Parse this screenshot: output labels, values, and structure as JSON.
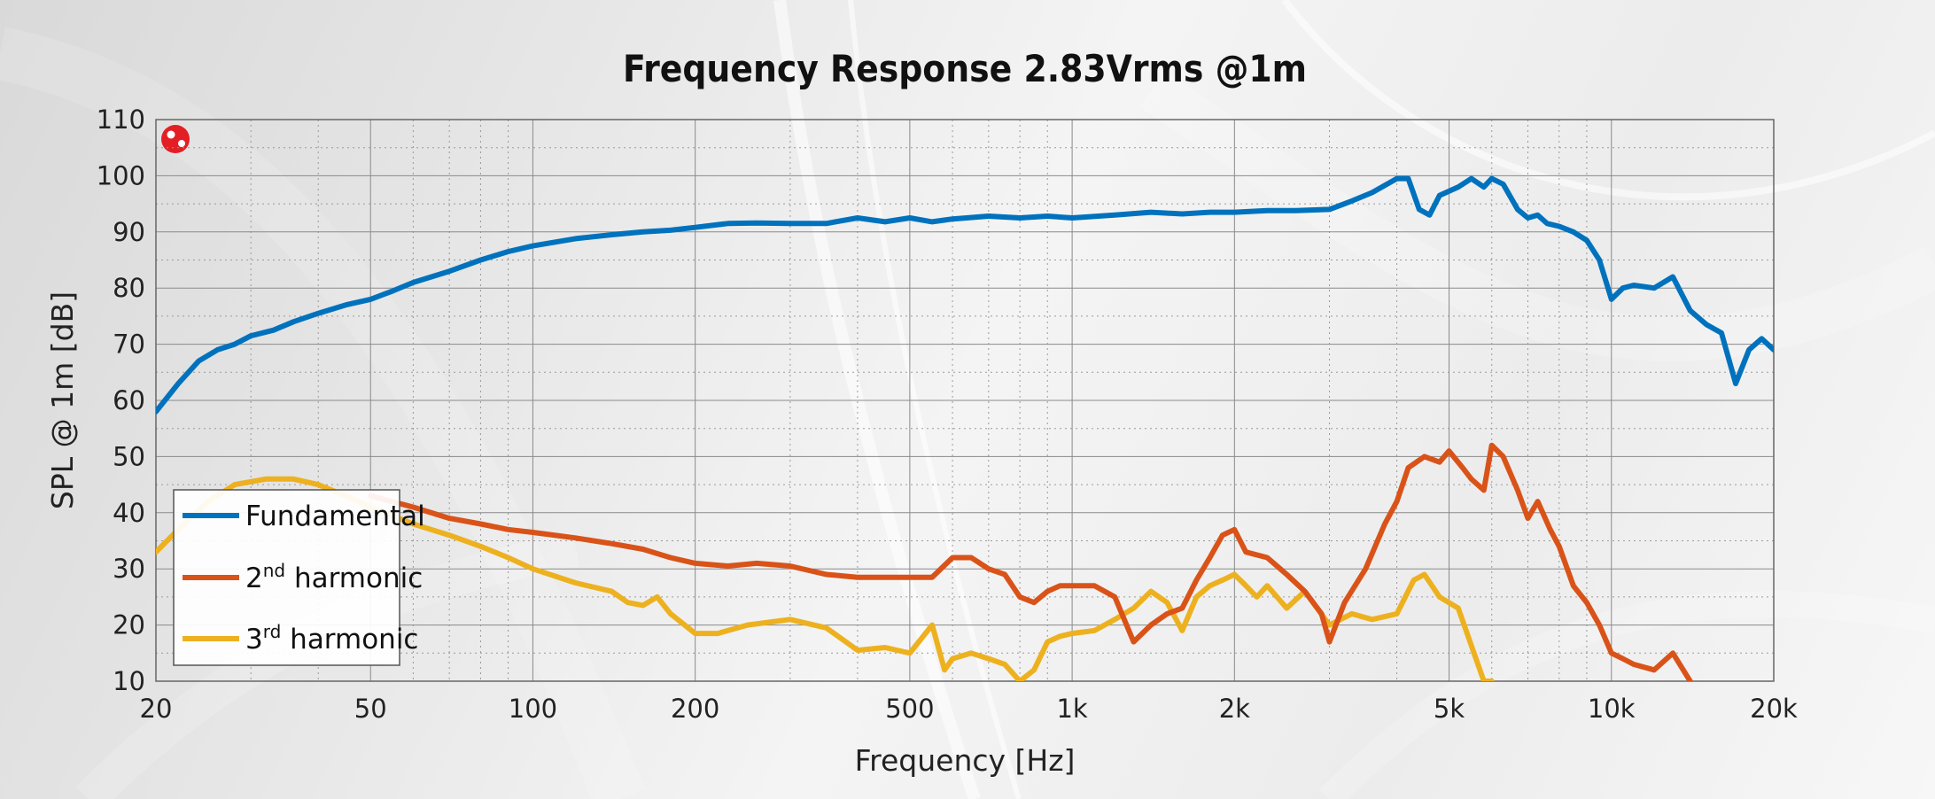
{
  "chart_data": {
    "type": "line",
    "title": "Frequency Response 2.83Vrms @1m",
    "xlabel": "Frequency [Hz]",
    "ylabel": "SPL @ 1m [dB]",
    "x_scale": "log",
    "xlim": [
      20,
      20000
    ],
    "ylim": [
      10,
      110
    ],
    "x_ticks": [
      20,
      50,
      100,
      200,
      500,
      1000,
      2000,
      5000,
      10000,
      20000
    ],
    "x_tick_labels": [
      "20",
      "50",
      "100",
      "200",
      "500",
      "1k",
      "2k",
      "5k",
      "10k",
      "20k"
    ],
    "y_ticks": [
      10,
      20,
      30,
      40,
      50,
      60,
      70,
      80,
      90,
      100,
      110
    ],
    "y_tick_labels": [
      "10",
      "20",
      "30",
      "40",
      "50",
      "60",
      "70",
      "80",
      "90",
      "100",
      "110"
    ],
    "grid": true,
    "legend_position": "bottom-left",
    "series": [
      {
        "name": "Fundamental",
        "legend_base": "Fundamental",
        "legend_sup": "",
        "legend_suffix": "",
        "color": "#0072bd",
        "points": [
          [
            20,
            58
          ],
          [
            22,
            63
          ],
          [
            24,
            67
          ],
          [
            26,
            69
          ],
          [
            28,
            70
          ],
          [
            30,
            71.5
          ],
          [
            33,
            72.5
          ],
          [
            36,
            74
          ],
          [
            40,
            75.5
          ],
          [
            45,
            77
          ],
          [
            50,
            78
          ],
          [
            55,
            79.5
          ],
          [
            60,
            81
          ],
          [
            70,
            83
          ],
          [
            80,
            85
          ],
          [
            90,
            86.5
          ],
          [
            100,
            87.5
          ],
          [
            120,
            88.8
          ],
          [
            140,
            89.5
          ],
          [
            160,
            90
          ],
          [
            180,
            90.3
          ],
          [
            200,
            90.8
          ],
          [
            230,
            91.5
          ],
          [
            260,
            91.6
          ],
          [
            300,
            91.5
          ],
          [
            350,
            91.5
          ],
          [
            400,
            92.5
          ],
          [
            450,
            91.8
          ],
          [
            500,
            92.5
          ],
          [
            550,
            91.8
          ],
          [
            600,
            92.3
          ],
          [
            700,
            92.8
          ],
          [
            800,
            92.5
          ],
          [
            900,
            92.8
          ],
          [
            1000,
            92.5
          ],
          [
            1200,
            93
          ],
          [
            1400,
            93.5
          ],
          [
            1600,
            93.2
          ],
          [
            1800,
            93.5
          ],
          [
            2000,
            93.5
          ],
          [
            2300,
            93.8
          ],
          [
            2600,
            93.8
          ],
          [
            3000,
            94
          ],
          [
            3300,
            95.5
          ],
          [
            3600,
            97
          ],
          [
            4000,
            99.5
          ],
          [
            4200,
            99.5
          ],
          [
            4400,
            94
          ],
          [
            4600,
            93
          ],
          [
            4800,
            96.5
          ],
          [
            5200,
            98
          ],
          [
            5500,
            99.5
          ],
          [
            5800,
            98
          ],
          [
            6000,
            99.5
          ],
          [
            6300,
            98.5
          ],
          [
            6700,
            94
          ],
          [
            7000,
            92.5
          ],
          [
            7300,
            93
          ],
          [
            7600,
            91.5
          ],
          [
            8000,
            91
          ],
          [
            8500,
            90
          ],
          [
            9000,
            88.5
          ],
          [
            9500,
            85
          ],
          [
            10000,
            78
          ],
          [
            10500,
            80
          ],
          [
            11000,
            80.5
          ],
          [
            12000,
            80
          ],
          [
            13000,
            82
          ],
          [
            14000,
            76
          ],
          [
            15000,
            73.5
          ],
          [
            16000,
            72
          ],
          [
            17000,
            63
          ],
          [
            18000,
            69
          ],
          [
            19000,
            71
          ],
          [
            20000,
            69
          ]
        ]
      },
      {
        "name": "2nd harmonic",
        "legend_base": "2",
        "legend_sup": "nd",
        "legend_suffix": " harmonic",
        "color": "#d95319",
        "points": [
          [
            50,
            43
          ],
          [
            60,
            41
          ],
          [
            70,
            39
          ],
          [
            80,
            38
          ],
          [
            90,
            37
          ],
          [
            100,
            36.5
          ],
          [
            120,
            35.5
          ],
          [
            140,
            34.5
          ],
          [
            160,
            33.5
          ],
          [
            180,
            32
          ],
          [
            200,
            31
          ],
          [
            230,
            30.5
          ],
          [
            260,
            31
          ],
          [
            300,
            30.5
          ],
          [
            350,
            29
          ],
          [
            400,
            28.5
          ],
          [
            450,
            28.5
          ],
          [
            500,
            28.5
          ],
          [
            550,
            28.5
          ],
          [
            600,
            32
          ],
          [
            650,
            32
          ],
          [
            700,
            30
          ],
          [
            750,
            29
          ],
          [
            800,
            25
          ],
          [
            850,
            24
          ],
          [
            900,
            26
          ],
          [
            950,
            27
          ],
          [
            1000,
            27
          ],
          [
            1100,
            27
          ],
          [
            1200,
            25
          ],
          [
            1300,
            17
          ],
          [
            1400,
            20
          ],
          [
            1500,
            22
          ],
          [
            1600,
            23
          ],
          [
            1700,
            28
          ],
          [
            1800,
            32
          ],
          [
            1900,
            36
          ],
          [
            2000,
            37
          ],
          [
            2100,
            33
          ],
          [
            2300,
            32
          ],
          [
            2500,
            29
          ],
          [
            2700,
            26
          ],
          [
            2900,
            22
          ],
          [
            3000,
            17
          ],
          [
            3200,
            24
          ],
          [
            3500,
            30
          ],
          [
            3800,
            38
          ],
          [
            4000,
            42
          ],
          [
            4200,
            48
          ],
          [
            4500,
            50
          ],
          [
            4800,
            49
          ],
          [
            5000,
            51
          ],
          [
            5300,
            48
          ],
          [
            5500,
            46
          ],
          [
            5800,
            44
          ],
          [
            6000,
            52
          ],
          [
            6300,
            50
          ],
          [
            6700,
            44
          ],
          [
            7000,
            39
          ],
          [
            7300,
            42
          ],
          [
            7700,
            37
          ],
          [
            8000,
            34
          ],
          [
            8500,
            27
          ],
          [
            9000,
            24
          ],
          [
            9500,
            20
          ],
          [
            10000,
            15
          ],
          [
            10500,
            14
          ],
          [
            11000,
            13
          ],
          [
            12000,
            12
          ],
          [
            13000,
            15
          ],
          [
            14000,
            10
          ]
        ]
      },
      {
        "name": "3rd harmonic",
        "legend_base": "3",
        "legend_sup": "rd",
        "legend_suffix": " harmonic",
        "color": "#edb120",
        "points": [
          [
            20,
            33
          ],
          [
            22,
            37
          ],
          [
            25,
            42
          ],
          [
            28,
            45
          ],
          [
            32,
            46
          ],
          [
            36,
            46
          ],
          [
            40,
            45
          ],
          [
            45,
            43
          ],
          [
            50,
            41
          ],
          [
            60,
            38
          ],
          [
            70,
            36
          ],
          [
            80,
            34
          ],
          [
            90,
            32
          ],
          [
            100,
            30
          ],
          [
            120,
            27.5
          ],
          [
            140,
            26
          ],
          [
            150,
            24
          ],
          [
            160,
            23.5
          ],
          [
            170,
            25
          ],
          [
            180,
            22
          ],
          [
            200,
            18.5
          ],
          [
            220,
            18.5
          ],
          [
            250,
            20
          ],
          [
            300,
            21
          ],
          [
            350,
            19.5
          ],
          [
            400,
            15.5
          ],
          [
            450,
            16
          ],
          [
            500,
            15
          ],
          [
            550,
            20
          ],
          [
            580,
            12
          ],
          [
            600,
            14
          ],
          [
            650,
            15
          ],
          [
            700,
            14
          ],
          [
            750,
            13
          ],
          [
            800,
            10
          ],
          [
            850,
            12
          ],
          [
            900,
            17
          ],
          [
            950,
            18
          ],
          [
            1000,
            18.5
          ],
          [
            1100,
            19
          ],
          [
            1200,
            21
          ],
          [
            1300,
            23
          ],
          [
            1400,
            26
          ],
          [
            1500,
            24
          ],
          [
            1600,
            19
          ],
          [
            1700,
            25
          ],
          [
            1800,
            27
          ],
          [
            1900,
            28
          ],
          [
            2000,
            29
          ],
          [
            2100,
            27
          ],
          [
            2200,
            25
          ],
          [
            2300,
            27
          ],
          [
            2500,
            23
          ],
          [
            2700,
            26
          ],
          [
            3000,
            20
          ],
          [
            3300,
            22
          ],
          [
            3600,
            21
          ],
          [
            4000,
            22
          ],
          [
            4300,
            28
          ],
          [
            4500,
            29
          ],
          [
            4800,
            25
          ],
          [
            5200,
            23
          ],
          [
            5800,
            10
          ],
          [
            6000,
            10
          ]
        ]
      }
    ]
  }
}
